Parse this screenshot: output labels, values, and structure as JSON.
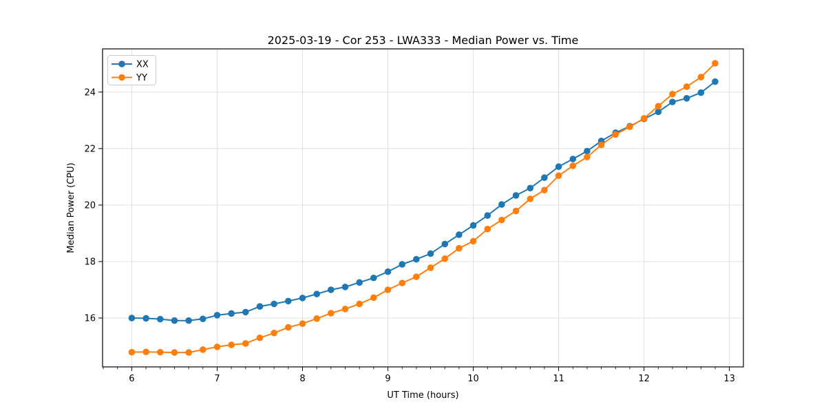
{
  "chart_data": {
    "type": "line",
    "title": "2025-03-19 - Cor 253 - LWA333 - Median Power vs. Time",
    "xlabel": "UT Time (hours)",
    "ylabel": "Median Power (CPU)",
    "xlim": [
      5.658,
      13.164
    ],
    "ylim": [
      14.27,
      25.53
    ],
    "x_ticks": [
      6,
      7,
      8,
      9,
      10,
      11,
      12,
      13
    ],
    "y_ticks": [
      16,
      18,
      20,
      22,
      24
    ],
    "x_minor_subdivisions": 6,
    "grid": true,
    "grid_color": "#dcdcdc",
    "legend_position": "upper-left",
    "x": [
      6,
      6.167,
      6.333,
      6.5,
      6.667,
      6.833,
      7,
      7.167,
      7.333,
      7.5,
      7.667,
      7.833,
      8,
      8.167,
      8.333,
      8.5,
      8.667,
      8.833,
      9,
      9.167,
      9.333,
      9.5,
      9.667,
      9.833,
      10,
      10.167,
      10.333,
      10.5,
      10.667,
      10.833,
      11,
      11.167,
      11.333,
      11.5,
      11.667,
      11.833,
      12,
      12.167,
      12.333,
      12.5,
      12.667,
      12.833
    ],
    "series": [
      {
        "name": "XX",
        "color": "#1f77b4",
        "values": [
          16.0,
          15.99,
          15.96,
          15.91,
          15.91,
          15.97,
          16.1,
          16.16,
          16.21,
          16.41,
          16.5,
          16.6,
          16.71,
          16.85,
          17.0,
          17.1,
          17.26,
          17.42,
          17.64,
          17.9,
          18.08,
          18.28,
          18.62,
          18.95,
          19.28,
          19.63,
          20.02,
          20.34,
          20.6,
          20.97,
          21.36,
          21.63,
          21.91,
          22.27,
          22.56,
          22.79,
          23.05,
          23.3,
          23.65,
          23.78,
          23.98,
          24.37
        ]
      },
      {
        "name": "YY",
        "color": "#ff7f0e",
        "values": [
          14.79,
          14.8,
          14.79,
          14.78,
          14.78,
          14.88,
          14.98,
          15.05,
          15.1,
          15.3,
          15.47,
          15.67,
          15.8,
          15.98,
          16.17,
          16.32,
          16.5,
          16.72,
          17.0,
          17.24,
          17.46,
          17.78,
          18.1,
          18.47,
          18.72,
          19.15,
          19.47,
          19.79,
          20.22,
          20.53,
          21.04,
          21.39,
          21.7,
          22.13,
          22.5,
          22.77,
          23.07,
          23.5,
          23.93,
          24.19,
          24.53,
          25.02
        ]
      }
    ]
  }
}
